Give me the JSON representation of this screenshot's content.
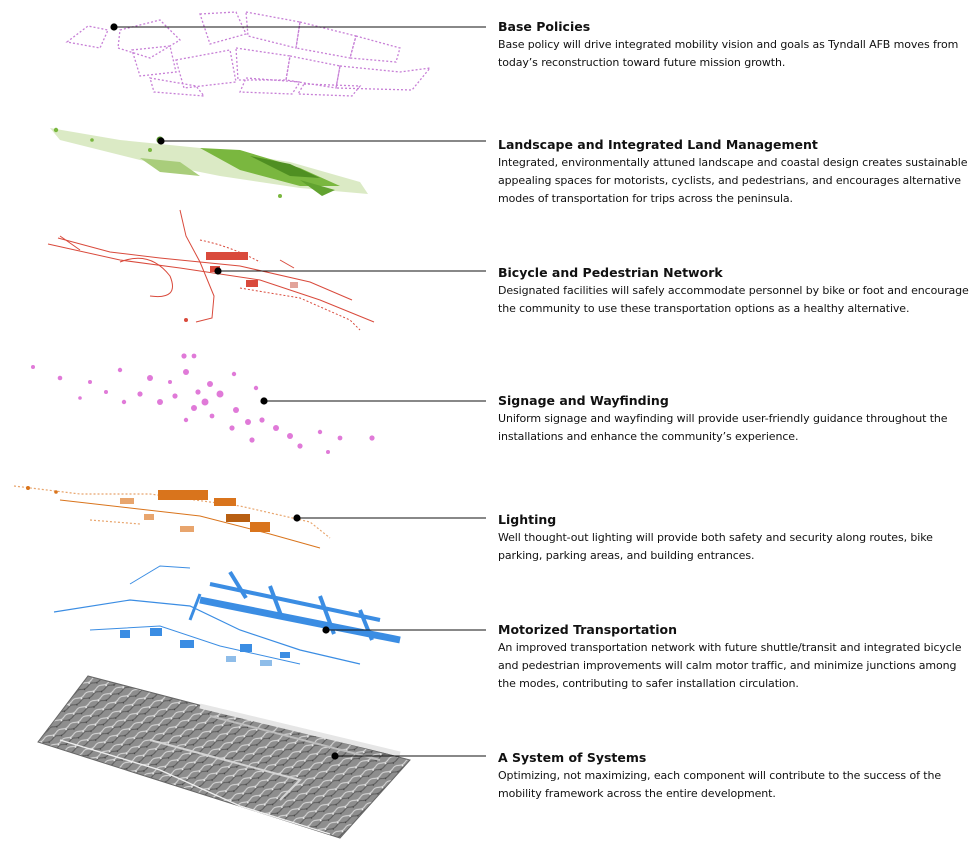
{
  "layers": [
    {
      "title": "Base Policies",
      "description": "Base policy will drive integrated mobility vision and goals as Tyndall AFB moves from today’s reconstruction toward future mission growth.",
      "color": "#c77fd6"
    },
    {
      "title": "Landscape and Integrated Land Management",
      "description": "Integrated, environmentally attuned landscape and coastal design creates sustainable appealing spaces for motorists, cyclists, and pedestrians, and encourages alternative modes of transportation for trips across the peninsula.",
      "color": "#7ab73f"
    },
    {
      "title": "Bicycle and Pedestrian Network",
      "description": "Designated facilities will safely accommodate personnel by bike or foot and encourage the community to use these transportation options as a healthy alternative.",
      "color": "#d94a3c"
    },
    {
      "title": "Signage and Wayfinding",
      "description": "Uniform signage and wayfinding will provide user-friendly guidance throughout the installations and enhance the community’s experience.",
      "color": "#e07ad8"
    },
    {
      "title": "Lighting",
      "description": "Well thought-out lighting will provide both safety and security along routes, bike parking, parking areas, and building entrances.",
      "color": "#d9741c"
    },
    {
      "title": "Motorized Transportation",
      "description": "An improved transportation network with future shuttle/transit and integrated bicycle and pedestrian improvements will calm motor traffic, and minimize junctions among the modes, contributing to safer installation circulation.",
      "color": "#3b8de3"
    },
    {
      "title": "A System of Systems",
      "description": "Optimizing, not maximizing, each component will contribute to the success of the mobility framework across the entire development.",
      "color": "#6b6b6b"
    }
  ]
}
